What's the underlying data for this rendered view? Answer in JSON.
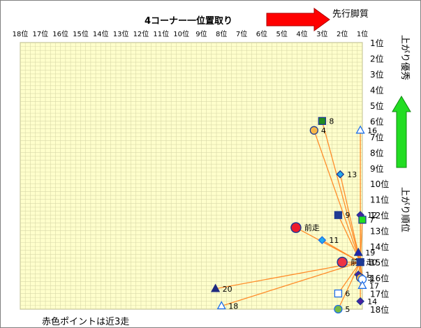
{
  "chart_data": {
    "type": "scatter",
    "title": "4コーナー一位置取り",
    "x_tick_labels": [
      "18位",
      "17位",
      "16位",
      "15位",
      "14位",
      "13位",
      "12位",
      "11位",
      "10位",
      "9位",
      "8位",
      "7位",
      "6位",
      "5位",
      "4位",
      "3位",
      "2位",
      "1位"
    ],
    "y_tick_labels": [
      "1位",
      "2位",
      "3位",
      "4位",
      "5位",
      "6位",
      "7位",
      "8位",
      "9位",
      "10位",
      "11位",
      "12位",
      "13位",
      "14位",
      "15位",
      "16位",
      "17位",
      "18位"
    ],
    "xlim": [
      18,
      1
    ],
    "ylim": [
      1,
      18
    ],
    "arrow_right_label": "先行脚質",
    "arrow_up_label": "上がり優秀",
    "y_axis_label": "上がり順位",
    "footnote": "赤色ポイントは近3走",
    "grid": true,
    "colors": {
      "plot_bg": "#ffffcc",
      "grid": "#d8d8a8",
      "line": "#ff8c2a",
      "red_arrow": "#ff0000",
      "green_arrow": "#22dd22"
    },
    "points": [
      {
        "label": "8",
        "x": 3.0,
        "y": 6.0,
        "marker": "square",
        "fill": "#228b22",
        "stroke": "#1f3a93"
      },
      {
        "label": "4",
        "x": 3.4,
        "y": 6.6,
        "marker": "circle",
        "fill": "#f7b84a",
        "stroke": "#1f3a93"
      },
      {
        "label": "16",
        "x": 1.1,
        "y": 6.6,
        "marker": "triangle-open",
        "fill": "#ffffff",
        "stroke": "#1e6ee8"
      },
      {
        "label": "13",
        "x": 2.1,
        "y": 9.4,
        "marker": "diamond",
        "fill": "#22aaee",
        "stroke": "#1f3a93"
      },
      {
        "label": "9",
        "x": 2.2,
        "y": 12.0,
        "marker": "square",
        "fill": "#1f3a93",
        "stroke": "#1f3a93"
      },
      {
        "label": "12",
        "x": 1.1,
        "y": 12.0,
        "marker": "diamond",
        "fill": "#4b1fa0",
        "stroke": "#1f3a93"
      },
      {
        "label": "7",
        "x": 1.0,
        "y": 12.3,
        "marker": "square",
        "fill": "#22dd22",
        "stroke": "#1f3a93"
      },
      {
        "label": "前走",
        "x": 4.3,
        "y": 12.8,
        "marker": "circle-big",
        "fill": "#ee1c2a",
        "stroke": "#1f3a93"
      },
      {
        "label": "11",
        "x": 3.0,
        "y": 13.6,
        "marker": "diamond",
        "fill": "#22aaee",
        "stroke": "#1e6ee8"
      },
      {
        "label": "19",
        "x": 1.2,
        "y": 14.4,
        "marker": "triangle",
        "fill": "#2222aa",
        "stroke": "#1f3a93"
      },
      {
        "label": "前々走",
        "x": 2.0,
        "y": 15.0,
        "marker": "circle-big",
        "fill": "#ee3344",
        "stroke": "#1f3a93"
      },
      {
        "label": "10",
        "x": 1.1,
        "y": 15.0,
        "marker": "square",
        "fill": "#1f3a93",
        "stroke": "#1f3a93"
      },
      {
        "label": "1",
        "x": 1.2,
        "y": 15.8,
        "marker": "diamond",
        "fill": "#4b1fa0",
        "stroke": "#1f3a93"
      },
      {
        "label": "3",
        "x": 1.1,
        "y": 16.0,
        "marker": "circle",
        "fill": "#f7b84a",
        "stroke": "#1f3a93"
      },
      {
        "label": "2",
        "x": 1.0,
        "y": 16.1,
        "marker": "circle-open",
        "fill": "#ffffff",
        "stroke": "#1e6ee8"
      },
      {
        "label": "17",
        "x": 1.0,
        "y": 16.5,
        "marker": "triangle-open",
        "fill": "#ffffff",
        "stroke": "#1e6ee8"
      },
      {
        "label": "20",
        "x": 8.3,
        "y": 16.7,
        "marker": "triangle",
        "fill": "#1f2a80",
        "stroke": "#1f2a80"
      },
      {
        "label": "6",
        "x": 2.2,
        "y": 17.0,
        "marker": "square-open",
        "fill": "#ffffff",
        "stroke": "#1e6ee8"
      },
      {
        "label": "14",
        "x": 1.1,
        "y": 17.5,
        "marker": "diamond",
        "fill": "#4b1fa0",
        "stroke": "#1f3a93"
      },
      {
        "label": "18",
        "x": 8.0,
        "y": 17.8,
        "marker": "triangle-open",
        "fill": "#ffffff",
        "stroke": "#1e6ee8"
      },
      {
        "label": "5",
        "x": 2.2,
        "y": 18.0,
        "marker": "circle",
        "fill": "#77bb44",
        "stroke": "#1e6ee8"
      }
    ],
    "hub": {
      "x": 1.1,
      "y": 15.0
    },
    "lines_from": [
      "8",
      "4",
      "16",
      "13",
      "9",
      "12",
      "7",
      "前走",
      "11",
      "19",
      "前々走",
      "10",
      "1",
      "3",
      "2",
      "17",
      "20",
      "6",
      "14",
      "18",
      "5"
    ]
  }
}
